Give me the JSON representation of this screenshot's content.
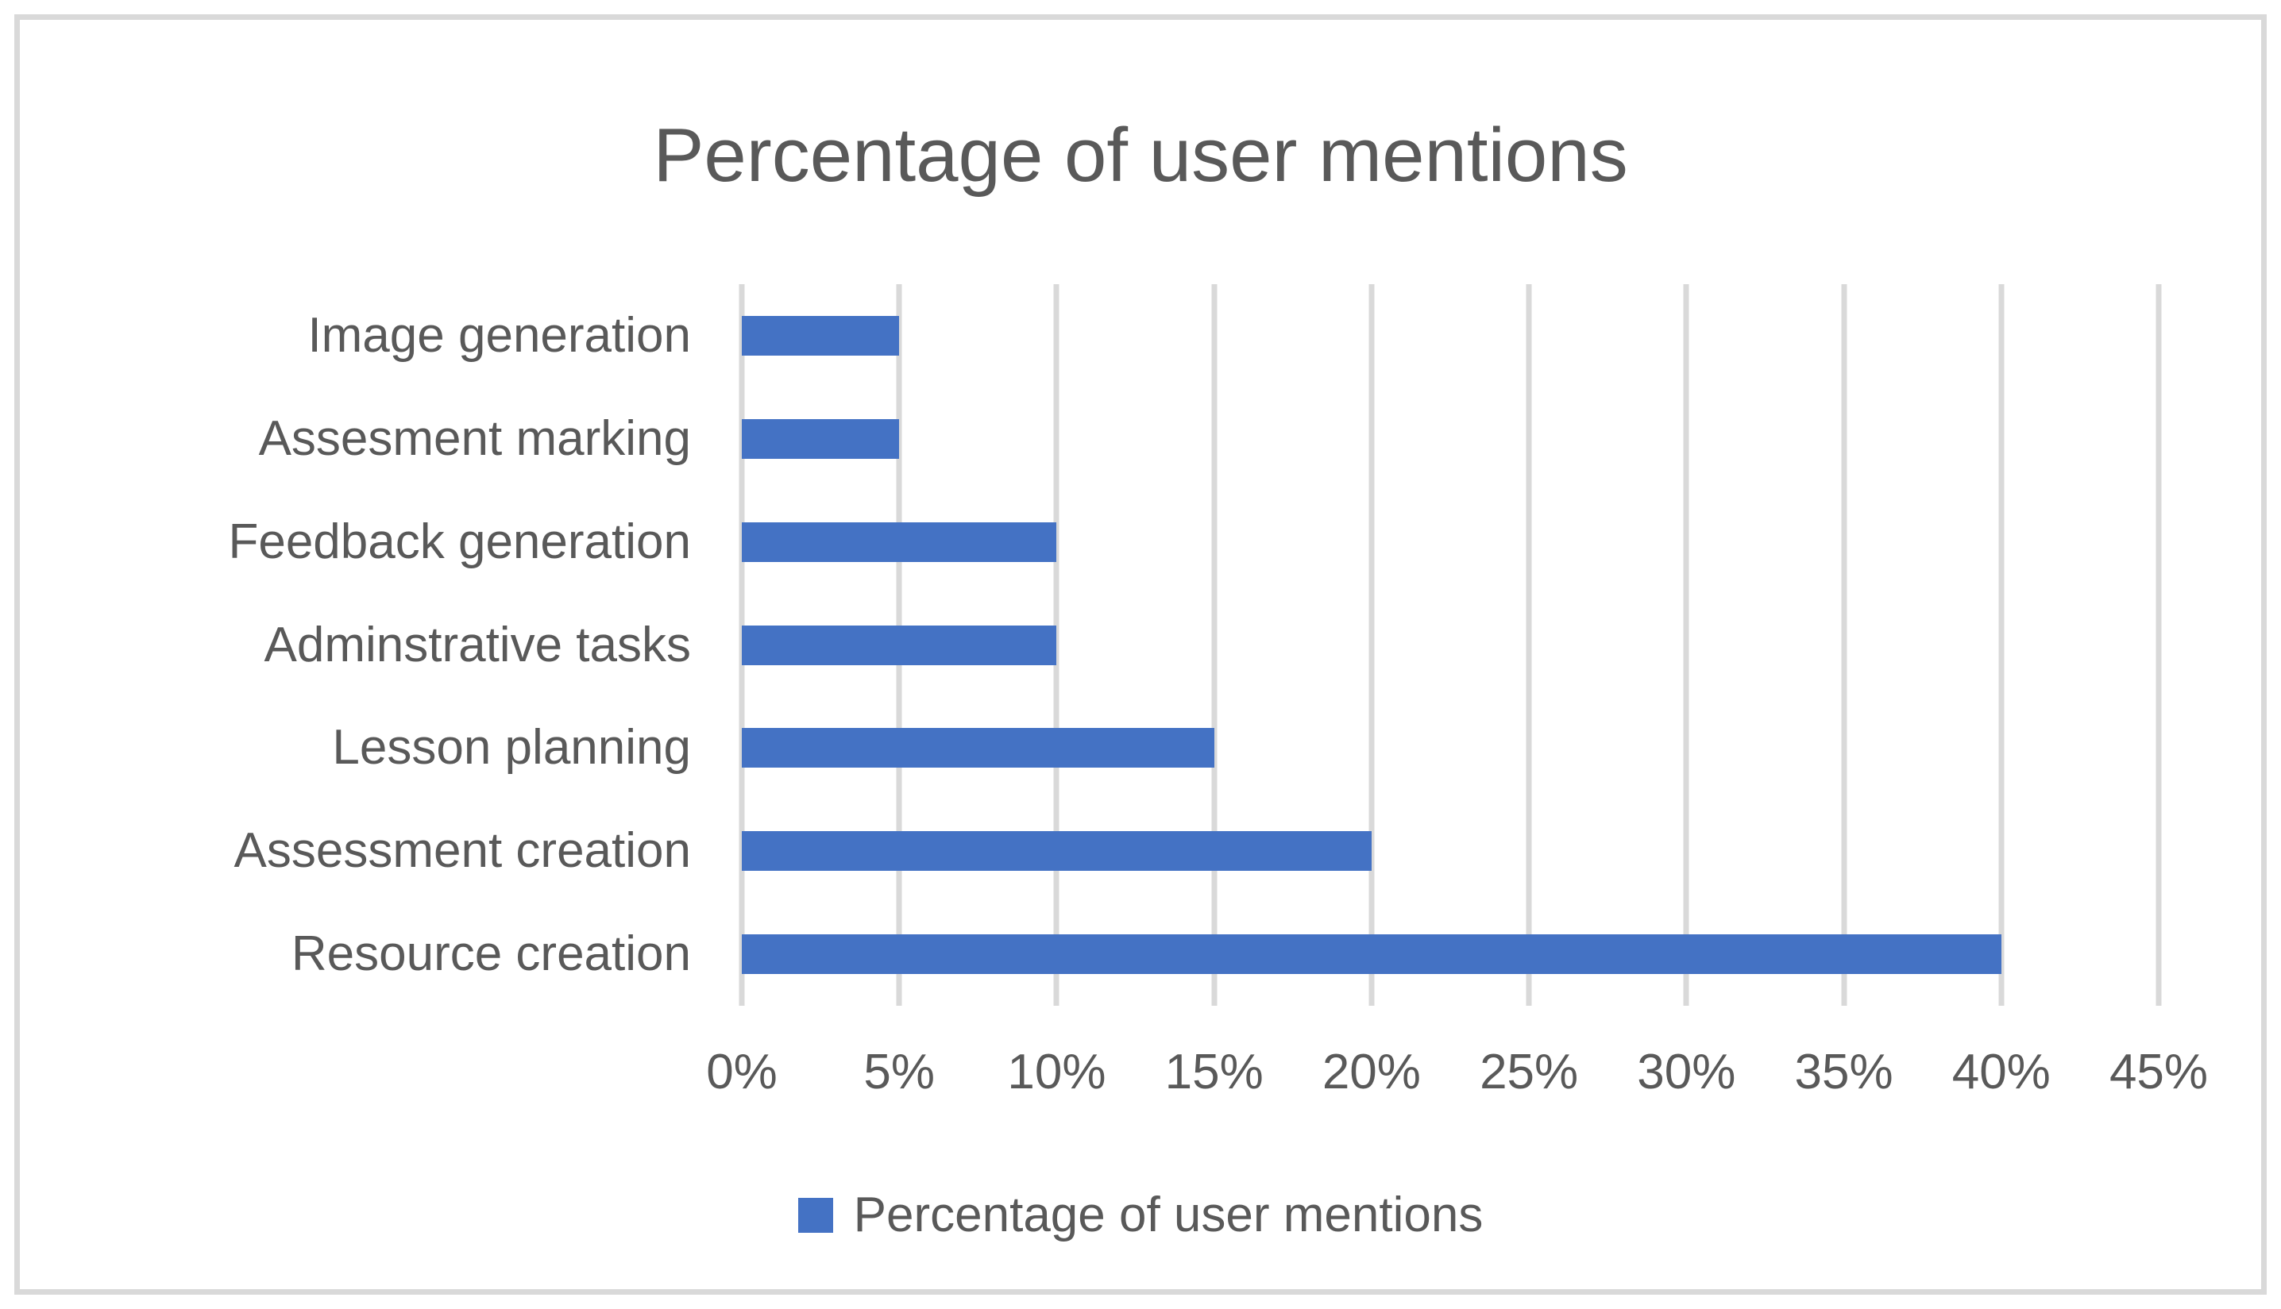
{
  "chart_data": {
    "type": "bar",
    "orientation": "horizontal",
    "title": "Percentage of user mentions",
    "categories": [
      "Image generation",
      "Assesment marking",
      "Feedback generation",
      "Adminstrative tasks",
      "Lesson planning",
      "Assessment creation",
      "Resource creation"
    ],
    "values": [
      5,
      5,
      10,
      10,
      15,
      20,
      40
    ],
    "value_unit": "%",
    "xlabel": "",
    "ylabel": "",
    "xlim": [
      0,
      45
    ],
    "x_tick_step": 5,
    "x_ticks": [
      {
        "value": 0,
        "label": "0%"
      },
      {
        "value": 5,
        "label": "5%"
      },
      {
        "value": 10,
        "label": "10%"
      },
      {
        "value": 15,
        "label": "15%"
      },
      {
        "value": 20,
        "label": "20%"
      },
      {
        "value": 25,
        "label": "25%"
      },
      {
        "value": 30,
        "label": "30%"
      },
      {
        "value": 35,
        "label": "35%"
      },
      {
        "value": 40,
        "label": "40%"
      },
      {
        "value": 45,
        "label": "45%"
      }
    ],
    "grid": "vertical",
    "legend": {
      "label": "Percentage of user mentions",
      "position": "bottom"
    },
    "colors": {
      "bar": "#4472C4",
      "grid": "#D9D9D9",
      "text": "#595959",
      "frame_border": "#D9D9D9",
      "background": "#FFFFFF"
    }
  }
}
